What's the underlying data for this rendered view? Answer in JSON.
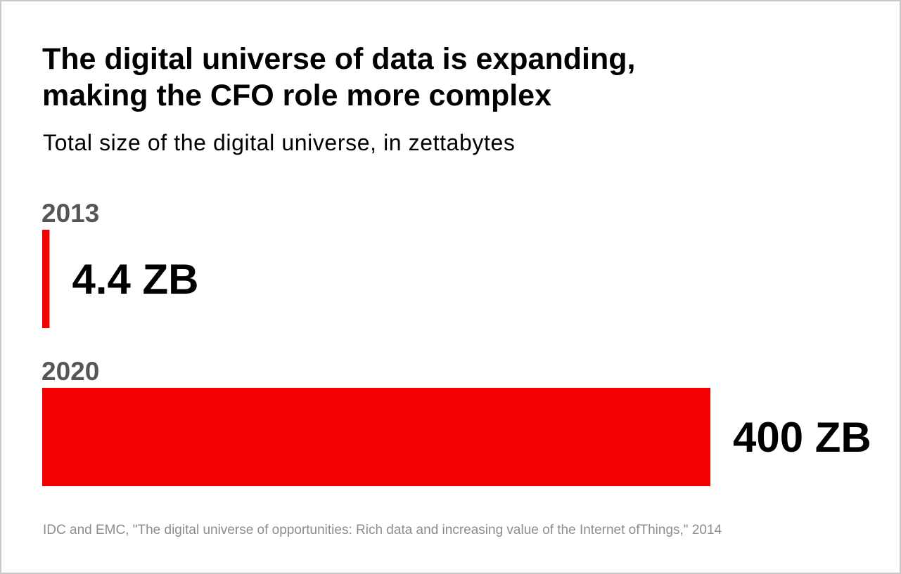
{
  "chart_data": {
    "type": "bar",
    "orientation": "horizontal",
    "title_lines": [
      "The digital universe of data is expanding,",
      "making the CFO role more complex"
    ],
    "subtitle": "Total size of the digital universe, in zettabytes",
    "categories": [
      "2013",
      "2020"
    ],
    "values": [
      4.4,
      400
    ],
    "value_labels": [
      "4.4 ZB",
      "400 ZB"
    ],
    "unit": "ZB",
    "xlim": [
      0,
      400
    ],
    "grid": false,
    "legend": "none",
    "source": "IDC and EMC, \"The digital universe of opportunities: Rich data and increasing value of the Internet ofThings,\" 2014"
  },
  "colors": {
    "bar": "#f50000",
    "year_label": "#555555",
    "source_text": "#8c8c8c",
    "border": "#c8c8c8"
  }
}
